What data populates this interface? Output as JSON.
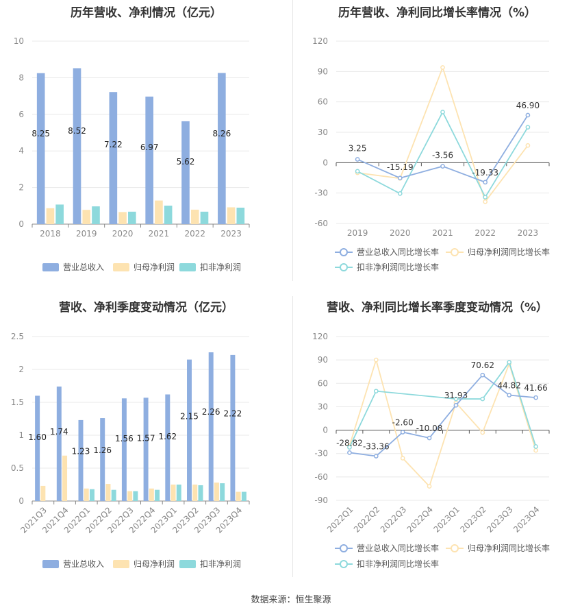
{
  "titles": {
    "p1": "历年营收、净利情况（亿元）",
    "p2": "历年营收、净利同比增长率情况（%）",
    "p3": "营收、净利季度变动情况（亿元）",
    "p4": "营收、净利同比增长率季度变动情况（%）"
  },
  "source": "数据来源：恒生聚源",
  "colors": {
    "revenue": "#8eaee0",
    "net_profit": "#fde3b1",
    "deducted_profit": "#8dd9dc",
    "rev_line": "#8eaee0",
    "np_line": "#fde3b1",
    "dp_line": "#8dd9dc"
  },
  "chart_data": [
    {
      "id": "annual_bar",
      "type": "bar",
      "title": "历年营收、净利情况（亿元）",
      "categories": [
        "2018",
        "2019",
        "2020",
        "2021",
        "2022",
        "2023"
      ],
      "ylim": [
        0,
        10
      ],
      "yticks": [
        0,
        2,
        4,
        6,
        8,
        10
      ],
      "series": [
        {
          "name": "营业总收入",
          "values": [
            8.25,
            8.52,
            7.22,
            6.97,
            5.62,
            8.26
          ],
          "labels": [
            "8.25",
            "8.52",
            "7.22",
            "6.97",
            "5.62",
            "8.26"
          ]
        },
        {
          "name": "归母净利润",
          "values": [
            0.87,
            0.78,
            0.66,
            1.29,
            0.79,
            0.92
          ]
        },
        {
          "name": "扣非净利润",
          "values": [
            1.07,
            0.97,
            0.68,
            1.01,
            0.68,
            0.9
          ]
        }
      ],
      "legend": [
        "营业总收入",
        "归母净利润",
        "扣非净利润"
      ],
      "legend_position": "bottom"
    },
    {
      "id": "annual_line",
      "type": "line",
      "title": "历年营收、净利同比增长率情况（%）",
      "categories": [
        "2019",
        "2020",
        "2021",
        "2022",
        "2023"
      ],
      "ylim": [
        -60,
        120
      ],
      "yticks": [
        -60,
        -30,
        0,
        30,
        60,
        90,
        120
      ],
      "series": [
        {
          "name": "营业总收入同比增长率",
          "values": [
            3.25,
            -15.19,
            -3.56,
            -19.33,
            46.9
          ],
          "labels": [
            "3.25",
            "-15.19",
            "-3.56",
            "-19.33",
            "46.90"
          ]
        },
        {
          "name": "归母净利润同比增长率",
          "values": [
            -10.0,
            -15.5,
            94.0,
            -38.5,
            17.0
          ]
        },
        {
          "name": "扣非净利润同比增长率",
          "values": [
            -8.5,
            -30.5,
            50.0,
            -34.0,
            35.0
          ]
        }
      ],
      "legend": [
        "营业总收入同比增长率",
        "归母净利润同比增长率",
        "扣非净利润同比增长率"
      ],
      "legend_position": "bottom"
    },
    {
      "id": "quarter_bar",
      "type": "bar",
      "title": "营收、净利季度变动情况（亿元）",
      "categories": [
        "2021Q3",
        "2021Q4",
        "2022Q1",
        "2022Q2",
        "2022Q3",
        "2022Q4",
        "2023Q1",
        "2023Q2",
        "2023Q3",
        "2023Q4"
      ],
      "ylim": [
        0,
        2.5
      ],
      "yticks": [
        0,
        0.5,
        1,
        1.5,
        2,
        2.5
      ],
      "ytick_labels": [
        "0",
        "0.5",
        "1",
        "1.5",
        "2",
        "2.5"
      ],
      "series": [
        {
          "name": "营业总收入",
          "values": [
            1.6,
            1.74,
            1.23,
            1.26,
            1.56,
            1.57,
            1.62,
            2.15,
            2.26,
            2.22
          ],
          "labels": [
            "1.60",
            "1.74",
            "1.23",
            "1.26",
            "1.56",
            "1.57",
            "1.62",
            "2.15",
            "2.26",
            "2.22"
          ]
        },
        {
          "name": "归母净利润",
          "values": [
            0.23,
            0.69,
            0.19,
            0.26,
            0.15,
            0.19,
            0.25,
            0.25,
            0.28,
            0.14
          ]
        },
        {
          "name": "扣非净利润",
          "values": [
            0.0,
            0.0,
            0.18,
            0.17,
            0.15,
            0.17,
            0.25,
            0.24,
            0.27,
            0.14
          ]
        }
      ],
      "legend": [
        "营业总收入",
        "归母净利润",
        "扣非净利润"
      ],
      "legend_position": "bottom"
    },
    {
      "id": "quarter_line",
      "type": "line",
      "title": "营收、净利同比增长率季度变动情况（%）",
      "categories": [
        "2022Q1",
        "2022Q2",
        "2022Q3",
        "2022Q4",
        "2023Q1",
        "2023Q2",
        "2023Q3",
        "2023Q4"
      ],
      "ylim": [
        -90,
        120
      ],
      "yticks": [
        -90,
        -60,
        -30,
        0,
        30,
        60,
        90,
        120
      ],
      "series": [
        {
          "name": "营业总收入同比增长率",
          "values": [
            -28.82,
            -33.36,
            -2.6,
            -10.08,
            31.93,
            70.62,
            44.82,
            41.66
          ],
          "labels": [
            "-28.82",
            "-33.36",
            "-2.60",
            "-10.08",
            "31.93",
            "70.62",
            "44.82",
            "41.66"
          ]
        },
        {
          "name": "归母净利润同比增长率",
          "values": [
            -20.0,
            90.0,
            -36.0,
            -72.0,
            35.0,
            -3.0,
            85.0,
            -26.0
          ]
        },
        {
          "name": "扣非净利润同比增长率",
          "values": [
            -22.0,
            50.0,
            null,
            null,
            40.0,
            40.0,
            87.0,
            -21.0
          ]
        }
      ],
      "legend": [
        "营业总收入同比增长率",
        "归母净利润同比增长率",
        "扣非净利润同比增长率"
      ],
      "legend_position": "bottom"
    }
  ]
}
